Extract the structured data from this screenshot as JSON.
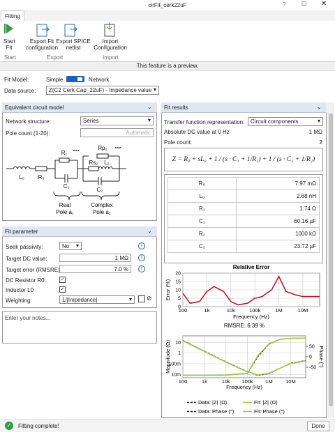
{
  "window": {
    "title": "cirFit_cerk22uF"
  },
  "ribbon": {
    "tab": "Fitting",
    "buttons": [
      "Start Fit",
      "Export Fit configuration",
      "Export SPICE netlist",
      "Import Configuration"
    ],
    "groups": [
      "Start",
      "Export",
      "Import"
    ]
  },
  "banner": "This feature is a preview.",
  "fit_model": {
    "label": "Fit Model:",
    "option_a": "Simple",
    "option_b": "Network"
  },
  "data_source": {
    "label": "Data source:",
    "value": "Z(C2 Cerk Cap_22uF) - Impedance value"
  },
  "circuit_panel": {
    "title": "Equivalent circuit model",
    "network_label": "Network structure:",
    "network_value": "Series",
    "pole_label": "Pole count (1-20):",
    "pole_value": "Automatic",
    "labels": {
      "l0": "L₀",
      "r0": "R₀",
      "r1": "R₁",
      "c1": "C₁",
      "rp2": "Rp₂",
      "rs2": "Rs₂",
      "l2": "L₂",
      "c2": "C₂"
    },
    "pole_a": [
      "Real",
      "Pole a₁"
    ],
    "pole_b": [
      "Complex",
      "Pole a₂"
    ]
  },
  "fit_parameter": {
    "title": "Fit parameter",
    "rows": [
      {
        "label": "Seek passivity:",
        "value": "No"
      },
      {
        "label": "Target DC value:",
        "value": "1 MΩ"
      },
      {
        "label": "Target error (RMSRE):",
        "value": "7.0 %"
      },
      {
        "label": "DC Resistor R0:"
      },
      {
        "label": "Inductor L0"
      },
      {
        "label": "Weighting:",
        "value": "1/|Impedance|"
      }
    ]
  },
  "notes": "Enter your notes...",
  "fit_results": {
    "title": "Fit results",
    "tf_label": "Transfer function representation:",
    "tf_value": "Circuit components",
    "dc_label": "Absolute DC value at 0 Hz",
    "dc_value": "1 MΩ",
    "pole_label": "Pole count:",
    "pole_value": "2",
    "formula": "Z = R₀ + sL₀ + 1 / (s · C₁ + 1/R₁) + 1 / (s · C₂ + 1/R₂)",
    "table": {
      "rows": [
        [
          "R₀",
          "7.97 mΩ"
        ],
        [
          "L₀",
          "2.68 nH"
        ],
        [
          "R₁",
          "1.74 Ω"
        ],
        [
          "C₁",
          "60.16 µF"
        ],
        [
          "R₂",
          "1000 kΩ"
        ],
        [
          "C₂",
          "23.72 µF"
        ]
      ]
    }
  },
  "charts": [
    {
      "type": "line",
      "title": "Relative Error",
      "x_label": "Frequency (Hz)",
      "y_label": "Error (%)",
      "x": [
        100,
        200,
        500,
        1000,
        2000,
        5000,
        10000,
        20000,
        50000,
        100000,
        200000,
        500000,
        1000000,
        2000000,
        5000000,
        10000000,
        50000000
      ],
      "values": [
        8,
        2,
        3,
        9,
        12,
        9,
        3,
        1,
        2,
        5,
        6,
        10,
        18,
        9,
        7,
        6,
        6
      ],
      "color": "#c0141e",
      "x_log": true,
      "grid": true,
      "xlim": [
        100,
        50000000
      ],
      "xticks": [
        100,
        {
          "value": 1000,
          "label": "1k"
        },
        {
          "value": 10000,
          "label": "10k"
        },
        {
          "value": 100000,
          "label": "100k"
        },
        {
          "value": 1000000,
          "label": "1M"
        },
        {
          "value": 10000000,
          "label": "10M"
        }
      ],
      "ylim": [
        0,
        20
      ],
      "yticks": [
        0,
        5,
        10,
        15,
        20
      ]
    },
    {
      "type": "line",
      "title": "RMSRE: 6.39 %",
      "x_label": "Frequency (Hz)",
      "y_label": "Magnitude (Ω)",
      "y2_label": "Phase (°)",
      "x": [
        100,
        1000,
        10000,
        100000,
        300000,
        1000000,
        3000000,
        10000000,
        50000000
      ],
      "series": [
        {
          "name": "Data: |Z| (Ω)",
          "color": "#000000",
          "line_style": "dashed",
          "values": [
            15,
            1.5,
            0.15,
            0.018,
            0.008,
            0.012,
            0.035,
            0.11,
            0.2
          ]
        },
        {
          "name": "Fit: |Z| (Ω)",
          "color": "#9acd32",
          "line_style": "solid",
          "values": [
            14,
            1.4,
            0.14,
            0.017,
            0.009,
            0.013,
            0.036,
            0.1,
            0.18
          ]
        },
        {
          "name": "Data: Phase (°)",
          "color": "#000000",
          "line_style": "dashed",
          "axis": "y2",
          "values": [
            -89,
            -89,
            -88,
            -80,
            0,
            60,
            82,
            88,
            89
          ]
        },
        {
          "name": "Fit: Phase (°)",
          "color": "#9acd32",
          "line_style": "solid",
          "axis": "y2",
          "values": [
            -89,
            -89,
            -88,
            -79,
            5,
            62,
            83,
            88,
            89
          ]
        }
      ],
      "x_log": true,
      "y_log": true,
      "grid": true,
      "xlim": [
        100,
        50000000
      ],
      "xticks": [
        100,
        {
          "value": 1000,
          "label": "1k"
        },
        {
          "value": 10000,
          "label": "10k"
        },
        {
          "value": 100000,
          "label": "100k"
        },
        {
          "value": 1000000,
          "label": "1M"
        },
        {
          "value": 10000000,
          "label": "10M"
        }
      ],
      "ylim": [
        0.005,
        40
      ],
      "yticks": [
        {
          "value": 0.01,
          "label": "10m"
        },
        {
          "value": 0.1,
          "label": "100m"
        },
        1,
        10
      ],
      "y2lim": [
        -100,
        100
      ],
      "y2ticks": [
        -50,
        0,
        50
      ]
    }
  ],
  "status": {
    "message": "Fitting complete!",
    "button": "Done"
  }
}
